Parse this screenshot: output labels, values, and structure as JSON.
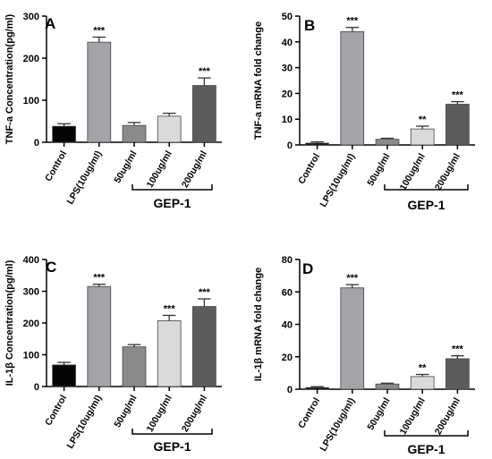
{
  "chart_data": [
    {
      "type": "bar",
      "panel_label": "A",
      "ylabel": "TNF-a  Concentration(pg/ml)",
      "categories": [
        "Control",
        "LPS(10ug/ml)",
        "50ug/ml",
        "100ug/ml",
        "200ug/ml"
      ],
      "values": [
        38,
        238,
        40,
        62,
        135
      ],
      "errors": [
        6,
        12,
        7,
        7,
        18
      ],
      "sig": [
        "",
        "***",
        "",
        "",
        "***"
      ],
      "ylim": [
        0,
        300
      ],
      "yticks": [
        "0",
        "100",
        "200",
        "300"
      ],
      "group_label": "GEP-1",
      "colors": [
        "#050505",
        "#a3a3a8",
        "#8b8b8b",
        "#dadada",
        "#5c5c5c"
      ]
    },
    {
      "type": "bar",
      "panel_label": "B",
      "ylabel": "TNF-a mRNA fold change",
      "categories": [
        "Control",
        "LPS(10ug/ml)",
        "50ug/ml",
        "100ug/ml",
        "200ug/ml"
      ],
      "values": [
        0.7,
        44,
        2.2,
        6.2,
        15.8
      ],
      "errors": [
        0.5,
        1.6,
        0.4,
        1.1,
        1.0
      ],
      "sig": [
        "",
        "***",
        "",
        "**",
        "***"
      ],
      "ylim": [
        0,
        50
      ],
      "yticks": [
        "0",
        "10",
        "20",
        "30",
        "40",
        "50"
      ],
      "group_label": "GEP-1",
      "colors": [
        "#050505",
        "#a3a3a8",
        "#8b8b8b",
        "#dadada",
        "#5c5c5c"
      ]
    },
    {
      "type": "bar",
      "panel_label": "C",
      "ylabel": "IL-1β  Concentration(pg/ml)",
      "categories": [
        "Control",
        "LPS(10ug/ml)",
        "50ug/ml",
        "100ug/ml",
        "200ug/ml"
      ],
      "values": [
        68,
        315,
        125,
        207,
        252
      ],
      "errors": [
        8,
        7,
        7,
        17,
        24
      ],
      "sig": [
        "",
        "***",
        "",
        "***",
        "***"
      ],
      "ylim": [
        0,
        400
      ],
      "yticks": [
        "0",
        "100",
        "200",
        "300",
        "400"
      ],
      "group_label": "GEP-1",
      "colors": [
        "#050505",
        "#a3a3a8",
        "#8b8b8b",
        "#dadada",
        "#5c5c5c"
      ]
    },
    {
      "type": "bar",
      "panel_label": "D",
      "ylabel": "IL-1β mRNA fold change",
      "categories": [
        "Control",
        "LPS(10ug/ml)",
        "50ug/ml",
        "100ug/ml",
        "200ug/ml"
      ],
      "values": [
        1.0,
        62.5,
        3.2,
        7.8,
        18.8
      ],
      "errors": [
        0.6,
        2.0,
        0.5,
        1.3,
        1.8
      ],
      "sig": [
        "",
        "***",
        "",
        "**",
        "***"
      ],
      "ylim": [
        0,
        80
      ],
      "yticks": [
        "0",
        "20",
        "40",
        "60",
        "80"
      ],
      "group_label": "GEP-1",
      "colors": [
        "#050505",
        "#a3a3a8",
        "#8b8b8b",
        "#dadada",
        "#5c5c5c"
      ]
    }
  ]
}
